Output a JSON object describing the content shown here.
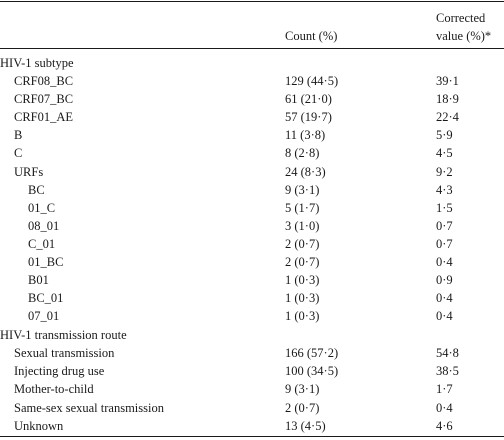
{
  "header": {
    "col_count": "Count (%)",
    "col_corrected_line1": "Corrected",
    "col_corrected_line2": "value (%)*"
  },
  "subtype_section": {
    "title": "HIV-1 subtype",
    "rows": [
      {
        "label": "CRF08_BC",
        "count": "129 (44·5)",
        "corrected": "39·1",
        "indent": 1
      },
      {
        "label": "CRF07_BC",
        "count": "61 (21·0)",
        "corrected": "18·9",
        "indent": 1
      },
      {
        "label": "CRF01_AE",
        "count": "57 (19·7)",
        "corrected": "22·4",
        "indent": 1
      },
      {
        "label": "B",
        "count": "11 (3·8)",
        "corrected": "5·9",
        "indent": 1
      },
      {
        "label": "C",
        "count": "8 (2·8)",
        "corrected": "4·5",
        "indent": 1
      },
      {
        "label": "URFs",
        "count": "24 (8·3)",
        "corrected": "9·2",
        "indent": 1
      },
      {
        "label": "BC",
        "count": "9 (3·1)",
        "corrected": "4·3",
        "indent": 2
      },
      {
        "label": "01_C",
        "count": "5 (1·7)",
        "corrected": "1·5",
        "indent": 2
      },
      {
        "label": "08_01",
        "count": "3 (1·0)",
        "corrected": "0·7",
        "indent": 2
      },
      {
        "label": "C_01",
        "count": "2 (0·7)",
        "corrected": "0·7",
        "indent": 2
      },
      {
        "label": "01_BC",
        "count": "2 (0·7)",
        "corrected": "0·4",
        "indent": 2
      },
      {
        "label": "B01",
        "count": "1 (0·3)",
        "corrected": "0·9",
        "indent": 2
      },
      {
        "label": "BC_01",
        "count": "1 (0·3)",
        "corrected": "0·4",
        "indent": 2
      },
      {
        "label": "07_01",
        "count": "1 (0·3)",
        "corrected": "0·4",
        "indent": 2
      }
    ]
  },
  "route_section": {
    "title": "HIV-1 transmission route",
    "rows": [
      {
        "label": "Sexual transmission",
        "count": "166 (57·2)",
        "corrected": "54·8"
      },
      {
        "label": "Injecting drug use",
        "count": "100 (34·5)",
        "corrected": "38·5"
      },
      {
        "label": "Mother-to-child",
        "count": "9 (3·1)",
        "corrected": "1·7"
      },
      {
        "label": "Same-sex sexual transmission",
        "count": "2 (0·7)",
        "corrected": "0·4"
      },
      {
        "label": "Unknown",
        "count": "13 (4·5)",
        "corrected": "4·6"
      }
    ]
  }
}
